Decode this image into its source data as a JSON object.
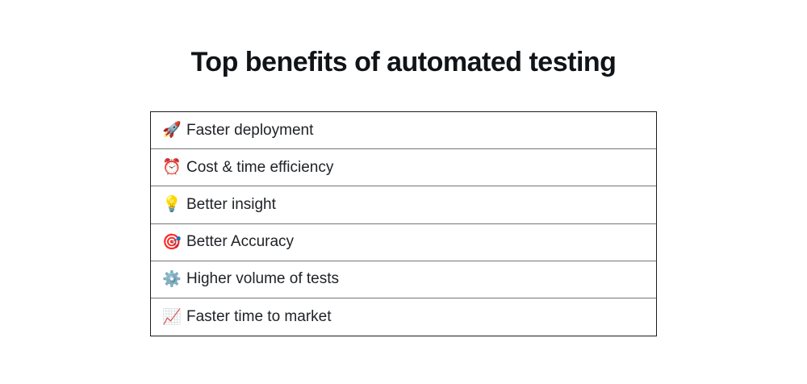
{
  "page": {
    "title": "Top benefits of automated testing"
  },
  "colors": {
    "background": "#ffffff",
    "title_text": "#111417",
    "row_text": "#1e2125",
    "outer_border": "#1a1a1a",
    "divider": "#757575"
  },
  "table": {
    "rows": [
      {
        "icon": "🚀",
        "icon_name": "rocket-icon",
        "label": "Faster deployment"
      },
      {
        "icon": "⏰",
        "icon_name": "alarm-clock-icon",
        "label": "Cost & time efficiency"
      },
      {
        "icon": "💡",
        "icon_name": "light-bulb-icon",
        "label": "Better insight"
      },
      {
        "icon": "🎯",
        "icon_name": "dart-target-icon",
        "label": "Better Accuracy"
      },
      {
        "icon": "⚙️",
        "icon_name": "gear-icon",
        "label": "Higher volume of tests"
      },
      {
        "icon": "📈",
        "icon_name": "chart-increasing-icon",
        "label": "Faster time to market"
      }
    ]
  }
}
